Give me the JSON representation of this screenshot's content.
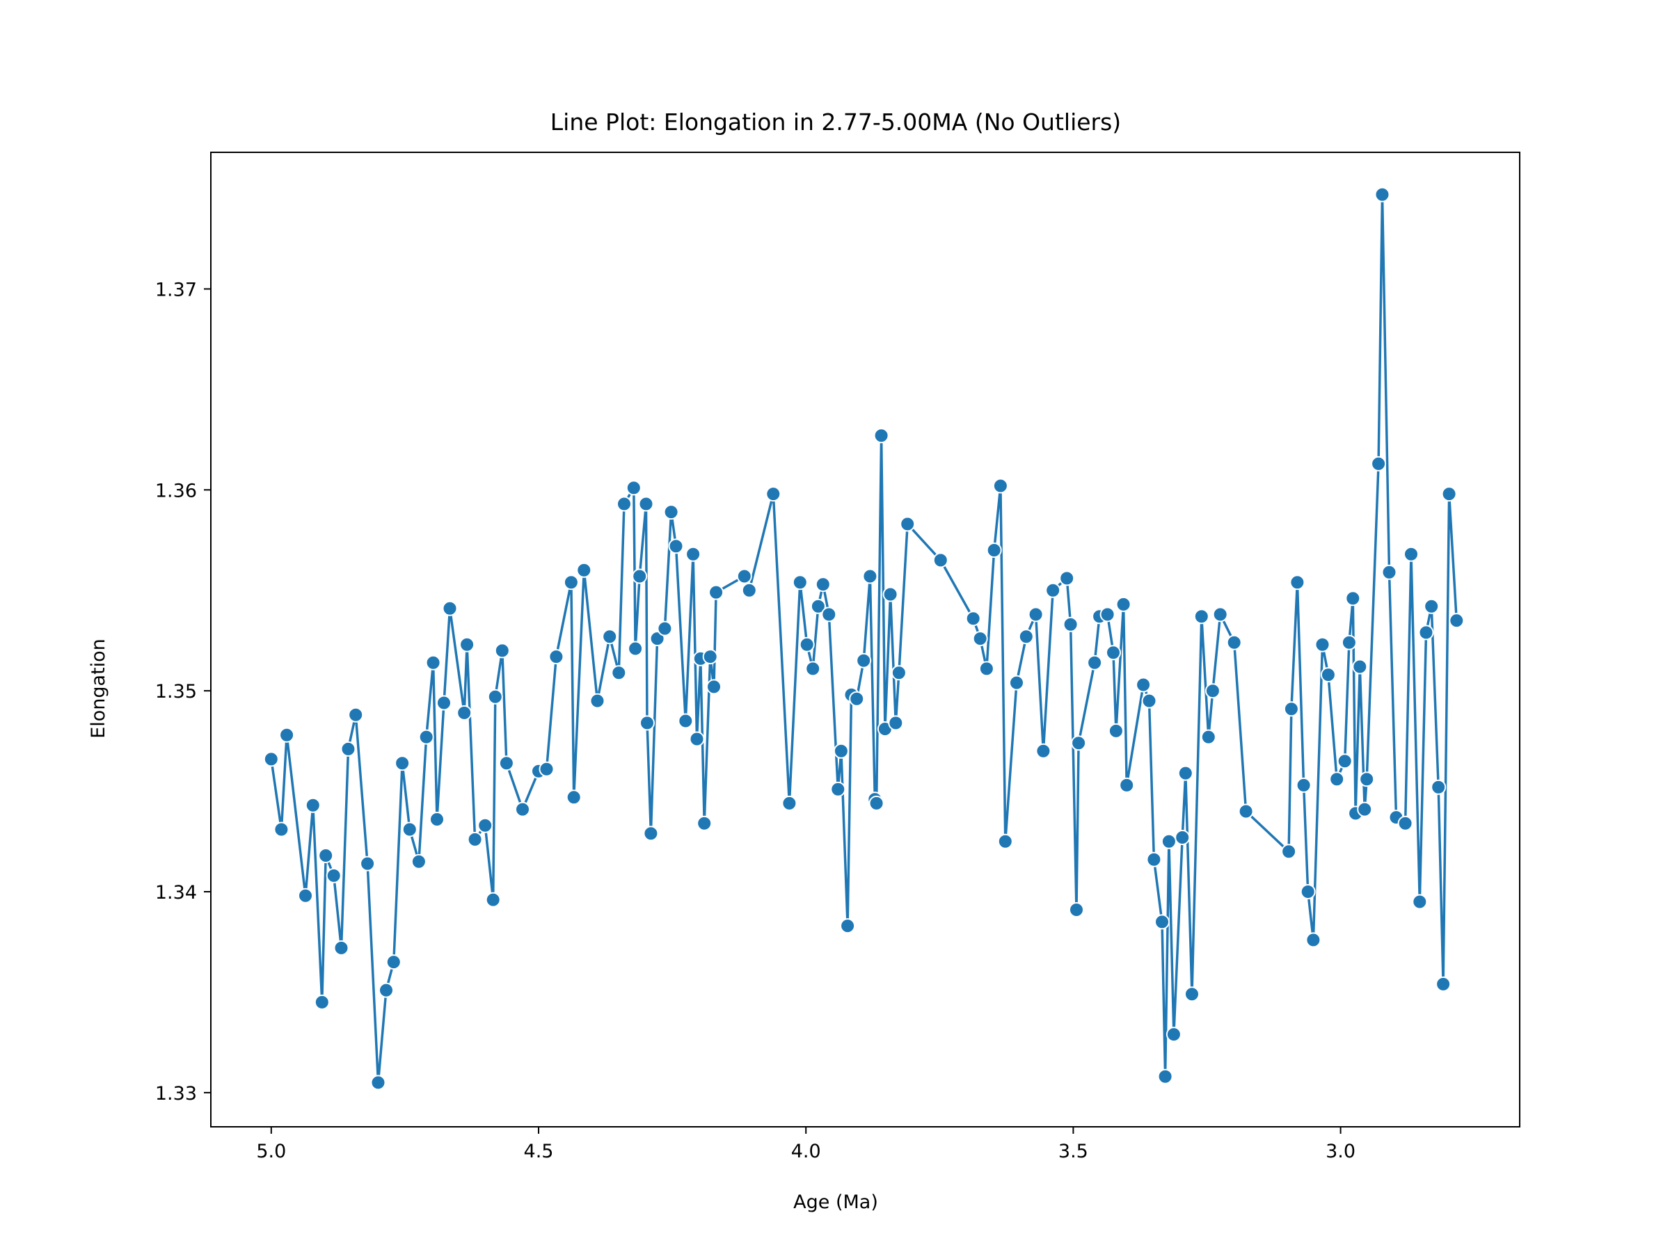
{
  "chart_data": {
    "type": "line",
    "title": "Line Plot: Elongation in 2.77-5.00MA (No Outliers)",
    "xlabel": "Age (Ma)",
    "ylabel": "Elongation",
    "x_reversed": true,
    "xlim": [
      5.113,
      2.665
    ],
    "ylim": [
      1.3283,
      1.3768
    ],
    "xticks": [
      5.0,
      4.5,
      4.0,
      3.5,
      3.0
    ],
    "xtick_labels": [
      "5.0",
      "4.5",
      "4.0",
      "3.5",
      "3.0"
    ],
    "yticks": [
      1.33,
      1.34,
      1.35,
      1.36,
      1.37
    ],
    "ytick_labels": [
      "1.33",
      "1.34",
      "1.35",
      "1.36",
      "1.37"
    ],
    "grid": false,
    "marker": "circle",
    "color": "#1f77b4",
    "series": [
      {
        "x": [
          5.0,
          4.981,
          4.971,
          4.936,
          4.922,
          4.905,
          4.898,
          4.883,
          4.869,
          4.856,
          4.842,
          4.82,
          4.8,
          4.785,
          4.771,
          4.755,
          4.741,
          4.724,
          4.71,
          4.697,
          4.69,
          4.677,
          4.666,
          4.639,
          4.634,
          4.619,
          4.6,
          4.585,
          4.581,
          4.568,
          4.56,
          4.53,
          4.5,
          4.485,
          4.467,
          4.439,
          4.434,
          4.415,
          4.39,
          4.367,
          4.35,
          4.34,
          4.322,
          4.319,
          4.311,
          4.299,
          4.297,
          4.29,
          4.278,
          4.264,
          4.252,
          4.243,
          4.225,
          4.211,
          4.204,
          4.197,
          4.19,
          4.179,
          4.172,
          4.168,
          4.115,
          4.106,
          4.061,
          4.031,
          4.011,
          3.998,
          3.987,
          3.977,
          3.968,
          3.957,
          3.94,
          3.934,
          3.922,
          3.915,
          3.905,
          3.892,
          3.88,
          3.871,
          3.868,
          3.859,
          3.852,
          3.842,
          3.832,
          3.826,
          3.81,
          3.748,
          3.687,
          3.674,
          3.662,
          3.648,
          3.636,
          3.627,
          3.606,
          3.588,
          3.57,
          3.556,
          3.538,
          3.512,
          3.505,
          3.494,
          3.49,
          3.46,
          3.451,
          3.436,
          3.425,
          3.42,
          3.406,
          3.4,
          3.369,
          3.358,
          3.349,
          3.334,
          3.328,
          3.321,
          3.312,
          3.296,
          3.29,
          3.278,
          3.26,
          3.247,
          3.239,
          3.225,
          3.199,
          3.177,
          3.097,
          3.092,
          3.081,
          3.069,
          3.061,
          3.051,
          3.034,
          3.023,
          3.007,
          2.992,
          2.984,
          2.977,
          2.972,
          2.964,
          2.955,
          2.951,
          2.929,
          2.922,
          2.909,
          2.896,
          2.879,
          2.868,
          2.852,
          2.84,
          2.83,
          2.817,
          2.808,
          2.797,
          2.783
        ],
        "y": [
          1.3466,
          1.3431,
          1.3478,
          1.3398,
          1.3443,
          1.3345,
          1.3418,
          1.3408,
          1.3372,
          1.3471,
          1.3488,
          1.3414,
          1.3305,
          1.3351,
          1.3365,
          1.3464,
          1.3431,
          1.3415,
          1.3477,
          1.3514,
          1.3436,
          1.3494,
          1.3541,
          1.3489,
          1.3523,
          1.3426,
          1.3433,
          1.3396,
          1.3497,
          1.352,
          1.3464,
          1.3441,
          1.346,
          1.3461,
          1.3517,
          1.3554,
          1.3447,
          1.356,
          1.3495,
          1.3527,
          1.3509,
          1.3593,
          1.3601,
          1.3521,
          1.3557,
          1.3593,
          1.3484,
          1.3429,
          1.3526,
          1.3531,
          1.3589,
          1.3572,
          1.3485,
          1.3568,
          1.3476,
          1.3516,
          1.3434,
          1.3517,
          1.3502,
          1.3549,
          1.3557,
          1.355,
          1.3598,
          1.3444,
          1.3554,
          1.3523,
          1.3511,
          1.3542,
          1.3553,
          1.3538,
          1.3451,
          1.347,
          1.3383,
          1.3498,
          1.3496,
          1.3515,
          1.3557,
          1.3446,
          1.3444,
          1.3627,
          1.3481,
          1.3548,
          1.3484,
          1.3509,
          1.3583,
          1.3565,
          1.3536,
          1.3526,
          1.3511,
          1.357,
          1.3602,
          1.3425,
          1.3504,
          1.3527,
          1.3538,
          1.347,
          1.355,
          1.3556,
          1.3533,
          1.3391,
          1.3474,
          1.3514,
          1.3537,
          1.3538,
          1.3519,
          1.348,
          1.3543,
          1.3453,
          1.3503,
          1.3495,
          1.3416,
          1.3385,
          1.3308,
          1.3425,
          1.3329,
          1.3427,
          1.3459,
          1.3349,
          1.3537,
          1.3477,
          1.35,
          1.3538,
          1.3524,
          1.344,
          1.342,
          1.3491,
          1.3554,
          1.3453,
          1.34,
          1.3376,
          1.3523,
          1.3508,
          1.3456,
          1.3465,
          1.3524,
          1.3546,
          1.3439,
          1.3512,
          1.3441,
          1.3456,
          1.3613,
          1.3747,
          1.3559,
          1.3437,
          1.3434,
          1.3568,
          1.3395,
          1.3529,
          1.3542,
          1.3452,
          1.3354,
          1.3598,
          1.3535
        ]
      }
    ]
  }
}
